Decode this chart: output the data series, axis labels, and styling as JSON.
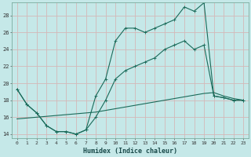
{
  "xlabel": "Humidex (Indice chaleur)",
  "bg_color": "#c5e8e8",
  "grid_color": "#d4b8b8",
  "line_color": "#1a6b5a",
  "xlim": [
    -0.5,
    23.5
  ],
  "ylim": [
    13.5,
    29.5
  ],
  "xticks": [
    0,
    1,
    2,
    3,
    4,
    5,
    6,
    7,
    8,
    9,
    10,
    11,
    12,
    13,
    14,
    15,
    16,
    17,
    18,
    19,
    20,
    21,
    22,
    23
  ],
  "yticks": [
    14,
    16,
    18,
    20,
    22,
    24,
    26,
    28
  ],
  "line1_x": [
    0,
    1,
    2,
    3,
    4,
    5,
    6,
    7,
    8,
    9,
    10,
    11,
    12,
    13,
    14,
    15,
    16,
    17,
    18,
    19,
    20,
    21,
    22,
    23
  ],
  "line1_y": [
    19.3,
    17.5,
    16.5,
    15.0,
    14.3,
    14.3,
    14.0,
    14.5,
    18.5,
    20.5,
    25.0,
    26.5,
    26.5,
    26.0,
    26.5,
    27.0,
    27.5,
    29.0,
    28.5,
    29.5,
    18.5,
    18.3,
    18.0,
    18.0
  ],
  "line2_x": [
    0,
    1,
    2,
    3,
    4,
    5,
    6,
    7,
    8,
    9,
    10,
    11,
    12,
    13,
    14,
    15,
    16,
    17,
    18,
    19,
    20,
    21,
    22,
    23
  ],
  "line2_y": [
    19.3,
    17.5,
    16.5,
    15.0,
    14.3,
    14.3,
    14.0,
    14.5,
    16.0,
    18.0,
    20.5,
    21.5,
    22.0,
    22.5,
    23.0,
    24.0,
    24.5,
    25.0,
    24.0,
    24.5,
    18.5,
    18.3,
    18.0,
    18.0
  ],
  "line3_x": [
    0,
    1,
    2,
    3,
    4,
    5,
    6,
    7,
    8,
    9,
    10,
    11,
    12,
    13,
    14,
    15,
    16,
    17,
    18,
    19,
    20,
    21,
    22,
    23
  ],
  "line3_y": [
    15.8,
    15.9,
    16.0,
    16.1,
    16.2,
    16.3,
    16.4,
    16.5,
    16.6,
    16.8,
    17.0,
    17.2,
    17.4,
    17.6,
    17.8,
    18.0,
    18.2,
    18.4,
    18.6,
    18.8,
    18.9,
    18.5,
    18.2,
    18.0
  ]
}
